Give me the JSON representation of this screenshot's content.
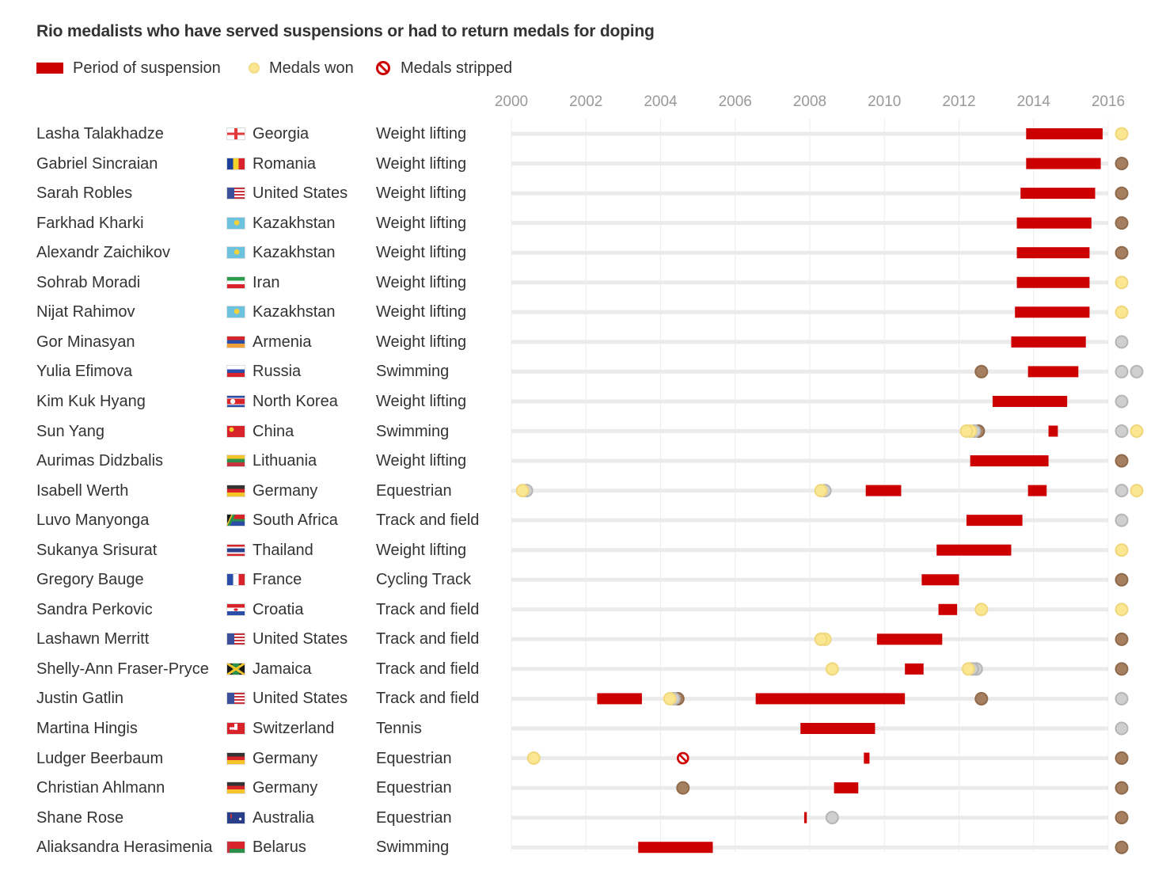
{
  "title": "Rio medalists who have served suspensions or had to return medals for doping",
  "legend": {
    "suspension": "Period of suspension",
    "won": "Medals won",
    "stripped": "Medals stripped"
  },
  "colors": {
    "suspension": "#cc0000",
    "gold": "#fbe692",
    "gold_stroke": "#f0d77c",
    "silver": "#cfcfcf",
    "silver_stroke": "#b5b5b5",
    "bronze": "#a57f5f",
    "bronze_stroke": "#8f6a4b",
    "track": "#ebebeb",
    "grid": "#ececec",
    "axis_text": "#999999"
  },
  "chart_data": {
    "type": "timeline",
    "title": "Rio medalists who have served suspensions or had to return medals for doping",
    "x_range": [
      2000,
      2016
    ],
    "x_ticks": [
      "2000",
      "2002",
      "2004",
      "2006",
      "2008",
      "2010",
      "2012",
      "2014",
      "2016"
    ],
    "rio_year": 2016,
    "rows": [
      {
        "name": "Lasha Talakhadze",
        "country": "Georgia",
        "flag": "georgia",
        "sport": "Weight lifting",
        "suspensions": [
          [
            2013.8,
            2015.85
          ]
        ],
        "medals": [],
        "rio": [
          "gold"
        ]
      },
      {
        "name": "Gabriel Sincraian",
        "country": "Romania",
        "flag": "romania",
        "sport": "Weight lifting",
        "suspensions": [
          [
            2013.8,
            2015.8
          ]
        ],
        "medals": [],
        "rio": [
          "bronze"
        ]
      },
      {
        "name": "Sarah Robles",
        "country": "United States",
        "flag": "usa",
        "sport": "Weight lifting",
        "suspensions": [
          [
            2013.65,
            2015.65
          ]
        ],
        "medals": [],
        "rio": [
          "bronze"
        ]
      },
      {
        "name": "Farkhad Kharki",
        "country": "Kazakhstan",
        "flag": "kazakhstan",
        "sport": "Weight lifting",
        "suspensions": [
          [
            2013.55,
            2015.55
          ]
        ],
        "medals": [],
        "rio": [
          "bronze"
        ]
      },
      {
        "name": "Alexandr Zaichikov",
        "country": "Kazakhstan",
        "flag": "kazakhstan",
        "sport": "Weight lifting",
        "suspensions": [
          [
            2013.55,
            2015.5
          ]
        ],
        "medals": [],
        "rio": [
          "bronze"
        ]
      },
      {
        "name": "Sohrab Moradi",
        "country": "Iran",
        "flag": "iran",
        "sport": "Weight lifting",
        "suspensions": [
          [
            2013.55,
            2015.5
          ]
        ],
        "medals": [],
        "rio": [
          "gold"
        ]
      },
      {
        "name": "Nijat Rahimov",
        "country": "Kazakhstan",
        "flag": "kazakhstan",
        "sport": "Weight lifting",
        "suspensions": [
          [
            2013.5,
            2015.5
          ]
        ],
        "medals": [],
        "rio": [
          "gold"
        ]
      },
      {
        "name": "Gor Minasyan",
        "country": "Armenia",
        "flag": "armenia",
        "sport": "Weight lifting",
        "suspensions": [
          [
            2013.4,
            2015.4
          ]
        ],
        "medals": [],
        "rio": [
          "silver"
        ]
      },
      {
        "name": "Yulia Efimova",
        "country": "Russia",
        "flag": "russia",
        "sport": "Swimming",
        "suspensions": [
          [
            2013.85,
            2015.2
          ]
        ],
        "medals": [
          {
            "year": 2012.6,
            "types": [
              "bronze"
            ]
          }
        ],
        "rio": [
          "silver",
          "silver"
        ]
      },
      {
        "name": "Kim Kuk Hyang",
        "country": "North Korea",
        "flag": "northkorea",
        "sport": "Weight lifting",
        "suspensions": [
          [
            2012.9,
            2014.9
          ]
        ],
        "medals": [],
        "rio": [
          "silver"
        ]
      },
      {
        "name": "Sun Yang",
        "country": "China",
        "flag": "china",
        "sport": "Swimming",
        "suspensions": [
          [
            2014.4,
            2014.65
          ]
        ],
        "medals": [
          {
            "year": 2012.2,
            "types": [
              "gold",
              "gold",
              "silver",
              "bronze"
            ]
          }
        ],
        "rio": [
          "silver",
          "gold"
        ]
      },
      {
        "name": "Aurimas Didzbalis",
        "country": "Lithuania",
        "flag": "lithuania",
        "sport": "Weight lifting",
        "suspensions": [
          [
            2012.3,
            2014.4
          ]
        ],
        "medals": [],
        "rio": [
          "bronze"
        ]
      },
      {
        "name": "Isabell Werth",
        "country": "Germany",
        "flag": "germany",
        "sport": "Equestrian",
        "suspensions": [
          [
            2009.5,
            2010.45
          ],
          [
            2013.85,
            2014.35
          ]
        ],
        "medals": [
          {
            "year": 2000.3,
            "types": [
              "gold",
              "silver"
            ]
          },
          {
            "year": 2008.3,
            "types": [
              "gold",
              "silver"
            ]
          }
        ],
        "rio": [
          "silver",
          "gold"
        ]
      },
      {
        "name": "Luvo Manyonga",
        "country": "South Africa",
        "flag": "southafrica",
        "sport": "Track and field",
        "suspensions": [
          [
            2012.2,
            2013.7
          ]
        ],
        "medals": [],
        "rio": [
          "silver"
        ]
      },
      {
        "name": "Sukanya Srisurat",
        "country": "Thailand",
        "flag": "thailand",
        "sport": "Weight lifting",
        "suspensions": [
          [
            2011.4,
            2013.4
          ]
        ],
        "medals": [],
        "rio": [
          "gold"
        ]
      },
      {
        "name": "Gregory Bauge",
        "country": "France",
        "flag": "france",
        "sport": "Cycling Track",
        "suspensions": [
          [
            2011.0,
            2012.0
          ]
        ],
        "medals": [],
        "rio": [
          "bronze"
        ]
      },
      {
        "name": "Sandra Perkovic",
        "country": "Croatia",
        "flag": "croatia",
        "sport": "Track and field",
        "suspensions": [
          [
            2011.45,
            2011.95
          ]
        ],
        "medals": [
          {
            "year": 2012.6,
            "types": [
              "gold"
            ]
          }
        ],
        "rio": [
          "gold"
        ]
      },
      {
        "name": "Lashawn Merritt",
        "country": "United States",
        "flag": "usa",
        "sport": "Track and field",
        "suspensions": [
          [
            2009.8,
            2011.55
          ]
        ],
        "medals": [
          {
            "year": 2008.3,
            "types": [
              "gold",
              "gold"
            ]
          }
        ],
        "rio": [
          "bronze"
        ]
      },
      {
        "name": "Shelly-Ann Fraser-Pryce",
        "country": "Jamaica",
        "flag": "jamaica",
        "sport": "Track and field",
        "suspensions": [
          [
            2010.55,
            2011.05
          ]
        ],
        "medals": [
          {
            "year": 2008.6,
            "types": [
              "gold"
            ]
          },
          {
            "year": 2012.25,
            "types": [
              "gold",
              "silver",
              "silver"
            ]
          }
        ],
        "rio": [
          "bronze"
        ]
      },
      {
        "name": "Justin Gatlin",
        "country": "United States",
        "flag": "usa",
        "sport": "Track and field",
        "suspensions": [
          [
            2002.3,
            2003.5
          ],
          [
            2006.55,
            2010.55
          ]
        ],
        "medals": [
          {
            "year": 2004.25,
            "types": [
              "gold",
              "silver",
              "bronze"
            ]
          },
          {
            "year": 2012.6,
            "types": [
              "bronze"
            ]
          }
        ],
        "rio": [
          "silver"
        ]
      },
      {
        "name": "Martina Hingis",
        "country": "Switzerland",
        "flag": "switzerland",
        "sport": "Tennis",
        "suspensions": [
          [
            2007.75,
            2009.75
          ]
        ],
        "medals": [],
        "rio": [
          "silver"
        ]
      },
      {
        "name": "Ludger Beerbaum",
        "country": "Germany",
        "flag": "germany",
        "sport": "Equestrian",
        "suspensions": [
          [
            2009.45,
            2009.6
          ]
        ],
        "medals": [
          {
            "year": 2000.6,
            "types": [
              "gold"
            ]
          }
        ],
        "stripped": [
          2004.6
        ],
        "rio": [
          "bronze"
        ]
      },
      {
        "name": "Christian Ahlmann",
        "country": "Germany",
        "flag": "germany",
        "sport": "Equestrian",
        "suspensions": [
          [
            2008.65,
            2009.3
          ]
        ],
        "medals": [
          {
            "year": 2004.6,
            "types": [
              "bronze"
            ]
          }
        ],
        "rio": [
          "bronze"
        ]
      },
      {
        "name": "Shane Rose",
        "country": "Australia",
        "flag": "australia",
        "sport": "Equestrian",
        "suspensions": [
          [
            2007.85,
            2007.92
          ]
        ],
        "medals": [
          {
            "year": 2008.6,
            "types": [
              "silver"
            ]
          }
        ],
        "rio": [
          "bronze"
        ]
      },
      {
        "name": "Aliaksandra Herasimenia",
        "country": "Belarus",
        "flag": "belarus",
        "sport": "Swimming",
        "suspensions": [
          [
            2003.4,
            2005.4
          ]
        ],
        "medals": [],
        "rio": [
          "bronze"
        ]
      }
    ]
  }
}
